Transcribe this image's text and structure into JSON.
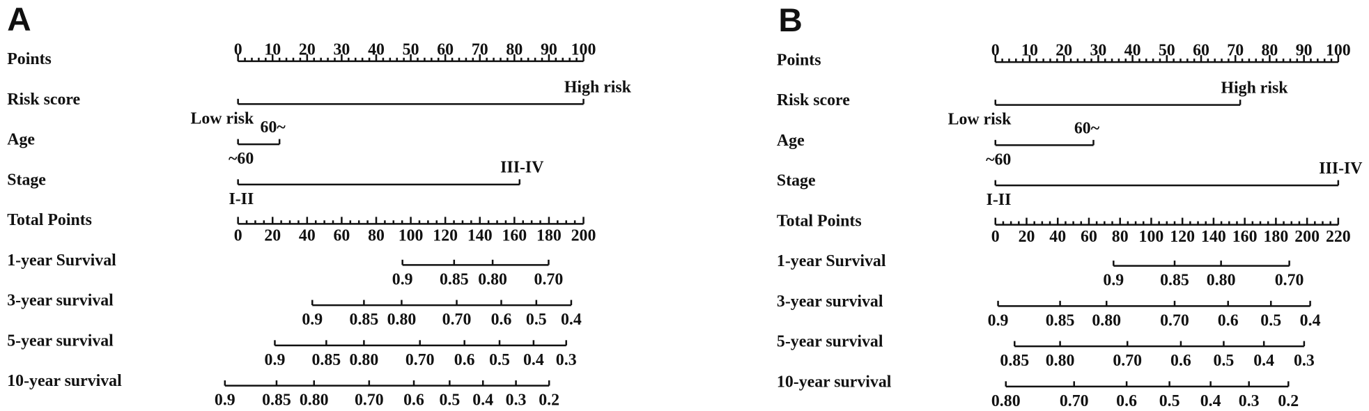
{
  "panels": [
    {
      "label": "A",
      "points_axis": {
        "name": "Points",
        "lim": [
          0,
          100
        ],
        "ticks": [
          0,
          10,
          20,
          30,
          40,
          50,
          60,
          70,
          80,
          90,
          100
        ],
        "minor_divisions": 5
      },
      "variables": [
        {
          "name": "Risk score",
          "levels": [
            {
              "label": "Low risk",
              "points": 0
            },
            {
              "label": "High risk",
              "points": 100
            }
          ]
        },
        {
          "name": "Age",
          "levels": [
            {
              "label": "~60",
              "points": 0
            },
            {
              "label": "60~",
              "points": 12
            }
          ]
        },
        {
          "name": "Stage",
          "levels": [
            {
              "label": "I-II",
              "points": 0
            },
            {
              "label": "III-IV",
              "points": 81.5
            }
          ]
        }
      ],
      "total_axis": {
        "name": "Total Points",
        "lim": [
          0,
          200
        ],
        "ticks": [
          0,
          20,
          40,
          60,
          80,
          100,
          120,
          140,
          160,
          180,
          200
        ],
        "minor_divisions": 4
      },
      "survival": [
        {
          "name": "1-year Survival",
          "ticks": [
            {
              "label": "0.9",
              "points": 95.2
            },
            {
              "label": "0.85",
              "points": 125.1
            },
            {
              "label": "0.80",
              "points": 147.4
            },
            {
              "label": "0.70",
              "points": 179.8
            }
          ]
        },
        {
          "name": "3-year survival",
          "ticks": [
            {
              "label": "0.9",
              "points": 43.0
            },
            {
              "label": "0.85",
              "points": 72.9
            },
            {
              "label": "0.80",
              "points": 94.7
            },
            {
              "label": "0.70",
              "points": 126.6
            },
            {
              "label": "0.6",
              "points": 152.4
            },
            {
              "label": "0.5",
              "points": 172.7
            },
            {
              "label": "0.4",
              "points": 192.9
            }
          ]
        },
        {
          "name": "5-year survival",
          "ticks": [
            {
              "label": "0.9",
              "points": 21.3
            },
            {
              "label": "0.85",
              "points": 51.1
            },
            {
              "label": "0.80",
              "points": 72.9
            },
            {
              "label": "0.70",
              "points": 105.3
            },
            {
              "label": "0.6",
              "points": 131.1
            },
            {
              "label": "0.5",
              "points": 151.4
            },
            {
              "label": "0.4",
              "points": 171.1
            },
            {
              "label": "0.3",
              "points": 190.0
            }
          ]
        },
        {
          "name": "10-year survival",
          "ticks": [
            {
              "label": "0.9",
              "points": -7.6
            },
            {
              "label": "0.85",
              "points": 22.3
            },
            {
              "label": "0.80",
              "points": 44.0
            },
            {
              "label": "0.70",
              "points": 75.9
            },
            {
              "label": "0.6",
              "points": 101.8
            },
            {
              "label": "0.5",
              "points": 122.5
            },
            {
              "label": "0.4",
              "points": 141.8
            },
            {
              "label": "0.3",
              "points": 160.9
            },
            {
              "label": "0.2",
              "points": 180.1
            }
          ]
        }
      ]
    },
    {
      "label": "B",
      "points_axis": {
        "name": "Points",
        "lim": [
          0,
          100
        ],
        "ticks": [
          0,
          10,
          20,
          30,
          40,
          50,
          60,
          70,
          80,
          90,
          100
        ],
        "minor_divisions": 5
      },
      "variables": [
        {
          "name": "Risk score",
          "levels": [
            {
              "label": "Low risk",
              "points": 0
            },
            {
              "label": "High risk",
              "points": 71.4
            }
          ]
        },
        {
          "name": "Age",
          "levels": [
            {
              "label": "~60",
              "points": 0
            },
            {
              "label": "60~",
              "points": 28.6
            }
          ]
        },
        {
          "name": "Stage",
          "levels": [
            {
              "label": "I-II",
              "points": 0
            },
            {
              "label": "III-IV",
              "points": 100
            }
          ]
        }
      ],
      "total_axis": {
        "name": "Total Points",
        "lim": [
          0,
          220
        ],
        "ticks": [
          0,
          20,
          40,
          60,
          80,
          100,
          120,
          140,
          160,
          180,
          200,
          220
        ],
        "minor_divisions": 4
      },
      "survival": [
        {
          "name": "1-year Survival",
          "ticks": [
            {
              "label": "0.9",
              "points": 75.8
            },
            {
              "label": "0.85",
              "points": 115.0
            },
            {
              "label": "0.80",
              "points": 144.8
            },
            {
              "label": "0.70",
              "points": 188.6
            }
          ]
        },
        {
          "name": "3-year survival",
          "ticks": [
            {
              "label": "0.9",
              "points": 1.7
            },
            {
              "label": "0.85",
              "points": 41.5
            },
            {
              "label": "0.80",
              "points": 71.3
            },
            {
              "label": "0.70",
              "points": 115.0
            },
            {
              "label": "0.6",
              "points": 149.3
            },
            {
              "label": "0.5",
              "points": 176.8
            },
            {
              "label": "0.4",
              "points": 202.0
            }
          ]
        },
        {
          "name": "5-year survival",
          "ticks": [
            {
              "label": "0.85",
              "points": 12.3
            },
            {
              "label": "0.80",
              "points": 41.5
            },
            {
              "label": "0.70",
              "points": 84.7
            },
            {
              "label": "0.6",
              "points": 119.0
            },
            {
              "label": "0.5",
              "points": 146.5
            },
            {
              "label": "0.4",
              "points": 172.3
            },
            {
              "label": "0.3",
              "points": 198.1
            }
          ]
        },
        {
          "name": "10-year survival",
          "ticks": [
            {
              "label": "0.80",
              "points": 6.7
            },
            {
              "label": "0.70",
              "points": 50.5
            },
            {
              "label": "0.6",
              "points": 84.2
            },
            {
              "label": "0.5",
              "points": 111.7
            },
            {
              "label": "0.4",
              "points": 138.1
            },
            {
              "label": "0.3",
              "points": 162.7
            },
            {
              "label": "0.2",
              "points": 188.0
            }
          ]
        }
      ]
    }
  ]
}
